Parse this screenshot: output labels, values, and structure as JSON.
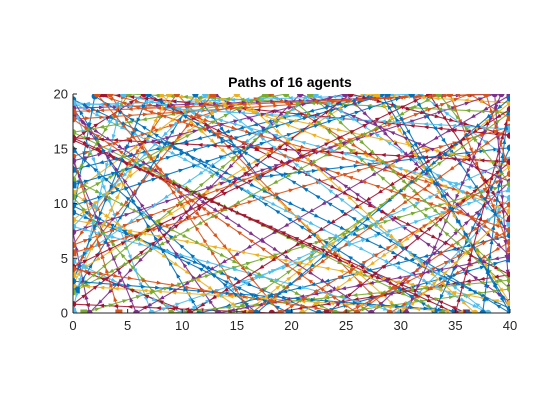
{
  "chart_data": {
    "type": "line",
    "title": "Paths of 16 agents",
    "xlabel": "",
    "ylabel": "",
    "xlim": [
      0,
      40
    ],
    "ylim": [
      0,
      20
    ],
    "xticks": [
      0,
      5,
      10,
      15,
      20,
      25,
      30,
      35,
      40
    ],
    "yticks": [
      0,
      5,
      10,
      15,
      20
    ],
    "grid": false,
    "legend": "none",
    "series_colors": [
      "#0072BD",
      "#D95319",
      "#EDB120",
      "#7E2F8E",
      "#77AC30",
      "#4DBEEE",
      "#A2142F"
    ],
    "series": [
      {
        "values": [
          [
            0.3,
            2.1
          ],
          [
            11.2,
            20.0
          ],
          [
            17.0,
            12.4
          ],
          [
            40.0,
            15.1
          ],
          [
            33.1,
            0.2
          ],
          [
            2.0,
            19.8
          ],
          [
            0.0,
            9.2
          ],
          [
            22.5,
            0.0
          ],
          [
            40.0,
            4.9
          ]
        ]
      },
      {
        "values": [
          [
            4.2,
            0.0
          ],
          [
            0.0,
            14.3
          ],
          [
            18.1,
            20.0
          ],
          [
            40.0,
            6.5
          ],
          [
            29.0,
            0.0
          ],
          [
            9.5,
            20.0
          ],
          [
            0.0,
            6.2
          ],
          [
            36.3,
            20.0
          ],
          [
            40.0,
            17.8
          ]
        ]
      },
      {
        "values": [
          [
            8.0,
            20.0
          ],
          [
            30.2,
            0.0
          ],
          [
            40.0,
            9.3
          ],
          [
            12.4,
            20.0
          ],
          [
            0.0,
            11.0
          ],
          [
            15.8,
            0.0
          ],
          [
            40.0,
            19.2
          ],
          [
            26.6,
            20.0
          ],
          [
            0.0,
            3.5
          ]
        ]
      },
      {
        "values": [
          [
            0.0,
            18.0
          ],
          [
            27.3,
            0.0
          ],
          [
            40.0,
            12.0
          ],
          [
            20.8,
            20.0
          ],
          [
            1.5,
            0.0
          ],
          [
            0.0,
            7.4
          ],
          [
            38.6,
            20.0
          ],
          [
            40.0,
            1.0
          ],
          [
            13.0,
            20.0
          ]
        ]
      },
      {
        "values": [
          [
            14.5,
            0.0
          ],
          [
            40.0,
            18.3
          ],
          [
            5.1,
            20.0
          ],
          [
            0.0,
            12.2
          ],
          [
            24.0,
            0.0
          ],
          [
            40.0,
            2.2
          ],
          [
            19.5,
            20.0
          ],
          [
            0.0,
            16.5
          ],
          [
            33.8,
            0.0
          ]
        ]
      },
      {
        "values": [
          [
            40.0,
            8.2
          ],
          [
            22.2,
            20.0
          ],
          [
            0.0,
            4.7
          ],
          [
            10.0,
            0.0
          ],
          [
            40.0,
            14.0
          ],
          [
            31.8,
            20.0
          ],
          [
            0.0,
            19.0
          ],
          [
            7.2,
            0.0
          ],
          [
            40.0,
            11.3
          ]
        ]
      },
      {
        "values": [
          [
            36.0,
            0.0
          ],
          [
            0.0,
            15.8
          ],
          [
            6.5,
            20.0
          ],
          [
            40.0,
            3.5
          ],
          [
            18.2,
            0.0
          ],
          [
            0.0,
            0.8
          ],
          [
            25.4,
            20.0
          ],
          [
            40.0,
            16.2
          ],
          [
            2.8,
            20.0
          ]
        ]
      },
      {
        "values": [
          [
            19.8,
            0.0
          ],
          [
            0.0,
            9.8
          ],
          [
            31.0,
            20.0
          ],
          [
            40.0,
            7.1
          ],
          [
            11.6,
            0.0
          ],
          [
            0.0,
            19.5
          ],
          [
            40.0,
            0.4
          ],
          [
            28.2,
            20.0
          ],
          [
            0.0,
            13.1
          ]
        ]
      },
      {
        "values": [
          [
            0.0,
            5.5
          ],
          [
            40.0,
            17.0
          ],
          [
            16.3,
            0.0
          ],
          [
            3.4,
            20.0
          ],
          [
            40.0,
            9.9
          ],
          [
            26.0,
            0.0
          ],
          [
            0.0,
            17.7
          ],
          [
            34.5,
            20.0
          ],
          [
            40.0,
            5.8
          ]
        ]
      },
      {
        "values": [
          [
            27.8,
            20.0
          ],
          [
            40.0,
            0.9
          ],
          [
            0.0,
            8.5
          ],
          [
            15.0,
            20.0
          ],
          [
            36.8,
            0.0
          ],
          [
            0.0,
            2.5
          ],
          [
            8.8,
            20.0
          ],
          [
            40.0,
            13.4
          ],
          [
            21.0,
            0.0
          ]
        ]
      },
      {
        "values": [
          [
            40.0,
            19.9
          ],
          [
            5.8,
            0.0
          ],
          [
            0.0,
            13.9
          ],
          [
            24.9,
            20.0
          ],
          [
            40.0,
            5.2
          ],
          [
            13.3,
            0.0
          ],
          [
            0.0,
            18.7
          ],
          [
            39.2,
            20.0
          ],
          [
            30.5,
            0.0
          ]
        ]
      },
      {
        "values": [
          [
            1.0,
            0.0
          ],
          [
            40.0,
            11.8
          ],
          [
            33.5,
            20.0
          ],
          [
            0.0,
            1.9
          ],
          [
            21.7,
            20.0
          ],
          [
            40.0,
            3.0
          ],
          [
            9.0,
            0.0
          ],
          [
            0.0,
            10.6
          ],
          [
            17.6,
            20.0
          ]
        ]
      },
      {
        "values": [
          [
            40.0,
            16.8
          ],
          [
            0.0,
            19.2
          ],
          [
            38.0,
            0.0
          ],
          [
            12.1,
            20.0
          ],
          [
            0.0,
            7.9
          ],
          [
            29.9,
            0.0
          ],
          [
            40.0,
            10.5
          ],
          [
            4.6,
            20.0
          ],
          [
            0.0,
            0.3
          ]
        ]
      },
      {
        "values": [
          [
            23.3,
            0.0
          ],
          [
            40.0,
            13.8
          ],
          [
            0.0,
            16.0
          ],
          [
            35.0,
            0.0
          ],
          [
            40.0,
            18.6
          ],
          [
            10.7,
            0.0
          ],
          [
            0.0,
            4.2
          ],
          [
            32.6,
            20.0
          ],
          [
            40.0,
            8.6
          ]
        ]
      },
      {
        "values": [
          [
            0.0,
            11.7
          ],
          [
            28.8,
            20.0
          ],
          [
            40.0,
            0.0
          ],
          [
            6.9,
            20.0
          ],
          [
            0.0,
            2.9
          ],
          [
            37.5,
            0.0
          ],
          [
            40.0,
            19.6
          ],
          [
            16.8,
            0.0
          ],
          [
            0.0,
            14.9
          ]
        ]
      },
      {
        "values": [
          [
            12.8,
            20.0
          ],
          [
            0.0,
            4.0
          ],
          [
            25.0,
            0.0
          ],
          [
            40.0,
            7.6
          ],
          [
            2.2,
            20.0
          ],
          [
            19.0,
            0.0
          ],
          [
            40.0,
            12.7
          ],
          [
            37.8,
            20.0
          ],
          [
            0.0,
            18.4
          ]
        ]
      }
    ]
  }
}
